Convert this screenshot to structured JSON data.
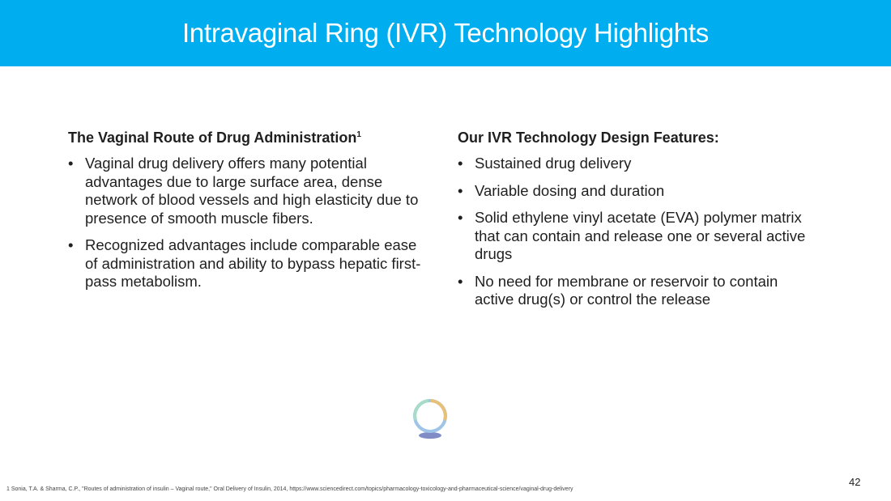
{
  "header": {
    "title": "Intravaginal Ring (IVR) Technology Highlights"
  },
  "left": {
    "heading": "The Vaginal Route of Drug Administration",
    "heading_sup": "1",
    "bullets": [
      "Vaginal drug delivery offers many potential advantages due to large surface area, dense network of blood vessels and high elasticity due to presence of smooth muscle fibers.",
      "Recognized advantages include comparable ease of administration and ability to bypass hepatic first-pass metabolism."
    ]
  },
  "right": {
    "heading": "Our IVR Technology Design Features:",
    "bullets": [
      "Sustained drug delivery",
      "Variable dosing and duration",
      "Solid ethylene vinyl acetate (EVA) polymer matrix that can contain and release one or several active drugs",
      "No need for membrane or reservoir to contain active drug(s) or control the release"
    ]
  },
  "page_number": "42",
  "footnote": "1 Sonia, T.A. & Sharma, C.P., \"Routes of administration of insulin – Vaginal route,\" Oral Delivery of Insulin, 2014, https://www.sciencedirect.com/topics/pharmacology-toxicology-and-pharmaceutical-science/vaginal-drug-delivery",
  "colors": {
    "header": "#00aeef"
  }
}
